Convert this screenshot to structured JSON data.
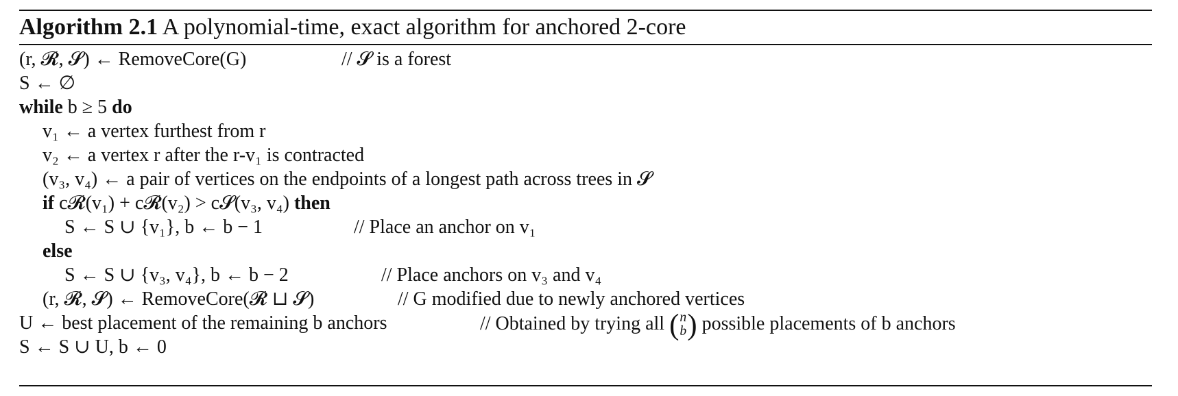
{
  "algorithm": {
    "label": "Algorithm 2.1",
    "title": "A polynomial-time, exact algorithm for anchored 2-core",
    "lines": [
      {
        "code": "(r, 𝓡, 𝓢) ← RemoveCore(G)",
        "comment": "// 𝓢 is a forest"
      },
      {
        "code": "S ← ∅"
      },
      {
        "keyword": "while",
        "code": " b ≥ 5 ",
        "keyword2": "do"
      },
      {
        "code": "v₁ ← a vertex furthest from r"
      },
      {
        "code": "v₂ ← a vertex r after the r-v₁ is contracted"
      },
      {
        "code": "(v₃, v₄) ← a pair of vertices on the endpoints of a longest path across trees in 𝓢"
      },
      {
        "keyword": "if",
        "code": " c𝓡(v₁) + c𝓡(v₂) > c𝓢(v₃, v₄) ",
        "keyword2": "then"
      },
      {
        "code": "S ← S ∪ {v₁}, b ← b − 1",
        "comment": "// Place an anchor on v₁"
      },
      {
        "keyword": "else"
      },
      {
        "code": "S ← S ∪ {v₃, v₄}, b ← b − 2",
        "comment": "// Place anchors on v₃ and v₄"
      },
      {
        "code": "(r, 𝓡, 𝓢) ← RemoveCore(𝓡 ⊔ 𝓢)",
        "comment": "// G modified due to newly anchored vertices"
      },
      {
        "code": "U ← best placement of the remaining b anchors",
        "comment_prefix": "// Obtained by trying all",
        "binom_top": "n",
        "binom_bottom": "b",
        "comment_suffix": "possible placements of b anchors"
      },
      {
        "code": "S ← S ∪ U, b ← 0"
      }
    ]
  }
}
